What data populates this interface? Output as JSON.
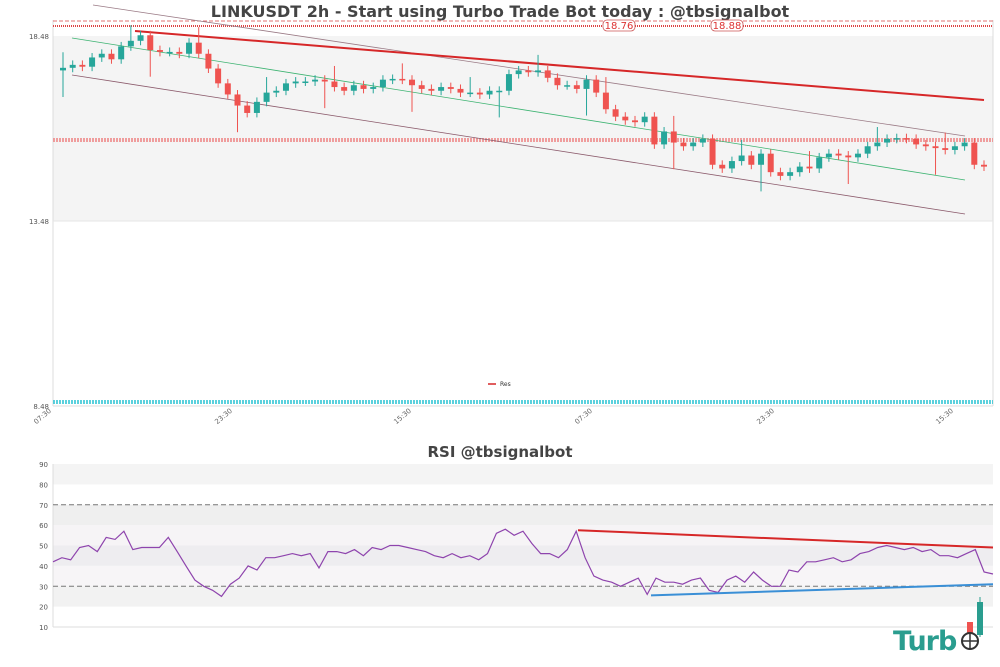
{
  "header": {
    "title": "LINKUSDT 2h - Start using Turbo Trade Bot today : @tbsignalbot",
    "rsi_title": "RSI @tbsignalbot"
  },
  "price_panel": {
    "y_ticks": [
      "18.48",
      "13.48",
      "8.48"
    ],
    "x_ticks": [
      "07:30",
      "23:30",
      "15:30",
      "07:30",
      "23:30",
      "15:30"
    ],
    "legend": [
      {
        "label": "Res",
        "color": "#d62728"
      }
    ],
    "price_labels": [
      "18.76",
      "18.88"
    ],
    "colors": {
      "up": "#26a69a",
      "down": "#ef5350",
      "resistance": "#d62728",
      "channel_mid": "#3cb371",
      "channel_edge": "#8b5a6b",
      "support_marker": "#17becf"
    }
  },
  "rsi_panel": {
    "y_ticks": [
      "90",
      "80",
      "70",
      "60",
      "50",
      "40",
      "30",
      "20",
      "10"
    ],
    "overbought": 70,
    "oversold": 30,
    "colors": {
      "line": "#8e44ad",
      "down_trend": "#d62728",
      "up_trend": "#3a8fd6"
    }
  },
  "logo": {
    "text": "Turb"
  },
  "chart_data": [
    {
      "type": "candlestick",
      "title": "LINKUSDT 2h - Start using Turbo Trade Bot today : @tbsignalbot",
      "xlabel": "",
      "ylabel": "",
      "ylim": [
        8.48,
        19.2
      ],
      "y_ticks": [
        18.48,
        13.48,
        8.48
      ],
      "x_ticks": [
        "07:30",
        "23:30",
        "15:30",
        "07:30",
        "23:30",
        "15:30"
      ],
      "legend": [
        "Res"
      ],
      "annotations": [
        "18.76",
        "18.88"
      ],
      "horizontal_levels": [
        18.76,
        18.88,
        16.4,
        8.6
      ],
      "close_approx": [
        17.62,
        17.7,
        17.65,
        17.9,
        18.0,
        17.85,
        18.2,
        18.35,
        18.5,
        18.1,
        18.05,
        18.05,
        18.0,
        18.3,
        18.0,
        17.6,
        17.2,
        16.9,
        16.6,
        16.4,
        16.7,
        16.95,
        17.0,
        17.2,
        17.25,
        17.25,
        17.3,
        17.25,
        17.1,
        17.0,
        17.15,
        17.05,
        17.1,
        17.3,
        17.32,
        17.3,
        17.15,
        17.05,
        17.0,
        17.1,
        17.05,
        16.95,
        16.95,
        16.9,
        17.0,
        17.0,
        17.45,
        17.55,
        17.5,
        17.55,
        17.35,
        17.15,
        17.15,
        17.05,
        17.3,
        16.95,
        16.5,
        16.3,
        16.2,
        16.15,
        16.3,
        15.55,
        15.9,
        15.6,
        15.5,
        15.6,
        15.7,
        15.0,
        14.9,
        15.1,
        15.25,
        15.0,
        15.3,
        14.8,
        14.7,
        14.8,
        14.95,
        14.9,
        15.2,
        15.3,
        15.25,
        15.2,
        15.3,
        15.5,
        15.6,
        15.7,
        15.72,
        15.7,
        15.55,
        15.5,
        15.45,
        15.4,
        15.5,
        15.6,
        15.0,
        14.95
      ]
    },
    {
      "type": "line",
      "title": "RSI @tbsignalbot",
      "ylim": [
        10,
        90
      ],
      "y_ticks": [
        90,
        80,
        70,
        60,
        50,
        40,
        30,
        20,
        10
      ],
      "reference_lines": [
        70,
        30
      ],
      "values": [
        42,
        44,
        43,
        49,
        50,
        47,
        54,
        53,
        57,
        48,
        49,
        49,
        49,
        54,
        47,
        40,
        33,
        30,
        28,
        25,
        31,
        34,
        40,
        38,
        44,
        44,
        45,
        46,
        45,
        46,
        39,
        47,
        47,
        46,
        48,
        45,
        49,
        48,
        50,
        50,
        49,
        48,
        47,
        45,
        44,
        46,
        44,
        45,
        43,
        46,
        56,
        58,
        55,
        57,
        51,
        46,
        46,
        44,
        48,
        57,
        44,
        35,
        33,
        32,
        30,
        32,
        34,
        26,
        34,
        32,
        32,
        31,
        33,
        34,
        28,
        27,
        33,
        35,
        32,
        37,
        33,
        30,
        30,
        38,
        37,
        42,
        42,
        43,
        44,
        42,
        43,
        46,
        47,
        49,
        50,
        49,
        48,
        49,
        47,
        48,
        45,
        45,
        44,
        46,
        48,
        37,
        36
      ],
      "trendlines": [
        {
          "name": "down",
          "from": 57,
          "to": 49
        },
        {
          "name": "up",
          "from": 25,
          "to": 31
        }
      ]
    }
  ]
}
